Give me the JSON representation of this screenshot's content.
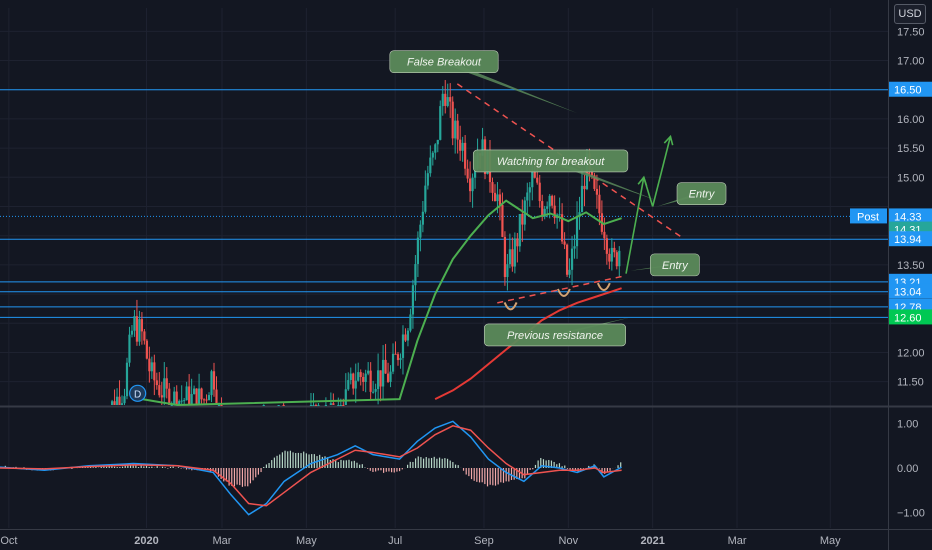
{
  "header": {
    "currency": "USD"
  },
  "colors": {
    "background": "#131722",
    "grid": "#1e2230",
    "up": "#26a69a",
    "down": "#ef5350",
    "hline": "#2196f3",
    "ma_fast": "#4caf50",
    "ma_slow": "#e53935",
    "callout_fill": "#5b8a5a",
    "macd": "#2196f3",
    "signal": "#ef5350",
    "arrow": "#4caf50"
  },
  "chart_data": {
    "type": "candlestick",
    "price_ticks": [
      11.5,
      12.0,
      12.5,
      13.0,
      13.5,
      14.0,
      14.5,
      15.0,
      15.5,
      16.0,
      16.5,
      17.0,
      17.5
    ],
    "price_tick_labels": [
      "11.50",
      "12.00",
      "12.50",
      "13.00",
      "13.50",
      "14.00",
      "14.50",
      "15.00",
      "15.50",
      "16.00",
      "16.50",
      "17.00",
      "17.50"
    ],
    "ylim": [
      11.1,
      17.9
    ],
    "macd_ticks": [
      1.0,
      0.0,
      -1.0
    ],
    "macd_tick_labels": [
      "1.00",
      "0.00",
      "−1.00"
    ],
    "macd_ylim": [
      -1.35,
      1.35
    ],
    "x_range": [
      0,
      100
    ],
    "x_tick_labels": [
      "Oct",
      "2020",
      "Mar",
      "May",
      "Jul",
      "Sep",
      "Nov",
      "2021",
      "Mar",
      "May"
    ],
    "x_tick_positions": [
      1,
      16.5,
      25,
      34.5,
      44.5,
      54.5,
      64,
      73.5,
      83,
      93.5
    ],
    "horizontal_levels": [
      {
        "value": 16.5,
        "label": "16.50",
        "style": "solid"
      },
      {
        "value": 14.33,
        "label": "14.33",
        "style": "dotted",
        "tag": "Post",
        "tag_color": "#2196f3"
      },
      {
        "value": 14.31,
        "label": "14.31",
        "style": "none",
        "tag_color": "#26a69a"
      },
      {
        "value": 13.94,
        "label": "13.94",
        "style": "solid"
      },
      {
        "value": 13.21,
        "label": "13.21",
        "style": "solid"
      },
      {
        "value": 13.04,
        "label": "13.04",
        "style": "solid"
      },
      {
        "value": 12.78,
        "label": "12.78",
        "style": "solid"
      },
      {
        "value": 12.6,
        "label": "12.60",
        "style": "solid",
        "tag_color": "#00c853"
      }
    ],
    "candles_visible_from": 11.5,
    "candles_to": 70,
    "series": [
      {
        "name": "MA fast",
        "points": [
          [
            16,
            11.2
          ],
          [
            18,
            11.15
          ],
          [
            20,
            11.1
          ],
          [
            45,
            11.2
          ],
          [
            47,
            12.2
          ],
          [
            49,
            13.0
          ],
          [
            51,
            13.6
          ],
          [
            53,
            14.0
          ],
          [
            55,
            14.35
          ],
          [
            57,
            14.6
          ],
          [
            58,
            14.5
          ],
          [
            60,
            14.3
          ],
          [
            62,
            14.38
          ],
          [
            64,
            14.25
          ],
          [
            66,
            14.4
          ],
          [
            68,
            14.2
          ],
          [
            70,
            14.3
          ]
        ]
      },
      {
        "name": "MA slow",
        "points": [
          [
            49,
            11.2
          ],
          [
            51,
            11.35
          ],
          [
            53,
            11.55
          ],
          [
            55,
            11.8
          ],
          [
            57,
            12.05
          ],
          [
            59,
            12.3
          ],
          [
            61,
            12.55
          ],
          [
            63,
            12.72
          ],
          [
            65,
            12.85
          ],
          [
            67,
            12.95
          ],
          [
            69,
            13.05
          ],
          [
            70,
            13.1
          ]
        ]
      }
    ],
    "macd_series": [
      {
        "name": "MACD",
        "points": [
          [
            0,
            0.02
          ],
          [
            5,
            -0.05
          ],
          [
            10,
            0.05
          ],
          [
            15,
            0.1
          ],
          [
            20,
            0.05
          ],
          [
            24,
            -0.1
          ],
          [
            26,
            -0.6
          ],
          [
            28,
            -1.05
          ],
          [
            30,
            -0.8
          ],
          [
            32,
            -0.3
          ],
          [
            35,
            0.1
          ],
          [
            38,
            0.3
          ],
          [
            40,
            0.5
          ],
          [
            42,
            0.3
          ],
          [
            45,
            0.2
          ],
          [
            47,
            0.6
          ],
          [
            49,
            0.9
          ],
          [
            51,
            1.05
          ],
          [
            53,
            0.7
          ],
          [
            55,
            0.2
          ],
          [
            57,
            -0.1
          ],
          [
            59,
            -0.3
          ],
          [
            61,
            0.05
          ],
          [
            63,
            0.0
          ],
          [
            65,
            -0.1
          ],
          [
            67,
            0.05
          ],
          [
            68,
            -0.2
          ],
          [
            70,
            0.02
          ]
        ]
      },
      {
        "name": "Signal",
        "points": [
          [
            0,
            0.0
          ],
          [
            5,
            -0.02
          ],
          [
            10,
            0.03
          ],
          [
            15,
            0.07
          ],
          [
            20,
            0.05
          ],
          [
            24,
            -0.05
          ],
          [
            26,
            -0.35
          ],
          [
            28,
            -0.8
          ],
          [
            30,
            -0.85
          ],
          [
            32,
            -0.55
          ],
          [
            35,
            -0.1
          ],
          [
            38,
            0.2
          ],
          [
            40,
            0.4
          ],
          [
            42,
            0.35
          ],
          [
            45,
            0.25
          ],
          [
            47,
            0.45
          ],
          [
            49,
            0.75
          ],
          [
            51,
            0.95
          ],
          [
            53,
            0.85
          ],
          [
            55,
            0.45
          ],
          [
            57,
            0.1
          ],
          [
            59,
            -0.15
          ],
          [
            61,
            -0.1
          ],
          [
            63,
            -0.05
          ],
          [
            65,
            -0.05
          ],
          [
            67,
            0.0
          ],
          [
            68,
            -0.1
          ],
          [
            70,
            -0.05
          ]
        ]
      }
    ],
    "annotations": [
      {
        "text": "False Breakout",
        "x": 50,
        "price": 16.98,
        "pointer": [
          65,
          16.1
        ]
      },
      {
        "text": "Watching for breakout",
        "x": 62,
        "price": 15.28,
        "pointer": [
          74,
          14.6
        ]
      },
      {
        "text": "Entry",
        "x": 79,
        "price": 14.72,
        "pointer": [
          74,
          14.5
        ]
      },
      {
        "text": "Entry",
        "x": 76,
        "price": 13.5,
        "pointer": [
          71,
          13.4
        ]
      },
      {
        "text": "Previous resistance",
        "x": 62.5,
        "price": 12.3,
        "pointer": [
          71,
          12.6
        ]
      }
    ],
    "trend_lines": [
      {
        "from": [
          51.5,
          16.6
        ],
        "to": [
          77,
          13.95
        ]
      },
      {
        "from": [
          56,
          12.85
        ],
        "to": [
          70,
          13.3
        ]
      }
    ],
    "arrows": [
      {
        "from": [
          70.5,
          13.35
        ],
        "to": [
          72.5,
          15.0
        ]
      },
      {
        "from": [
          72.5,
          15.0
        ],
        "to": [
          73.5,
          14.5
        ]
      },
      {
        "from": [
          73.5,
          14.5
        ],
        "to": [
          75.5,
          15.7
        ]
      }
    ],
    "dividend_marker": {
      "label": "D",
      "x": 15.5,
      "price": 11.3
    }
  }
}
